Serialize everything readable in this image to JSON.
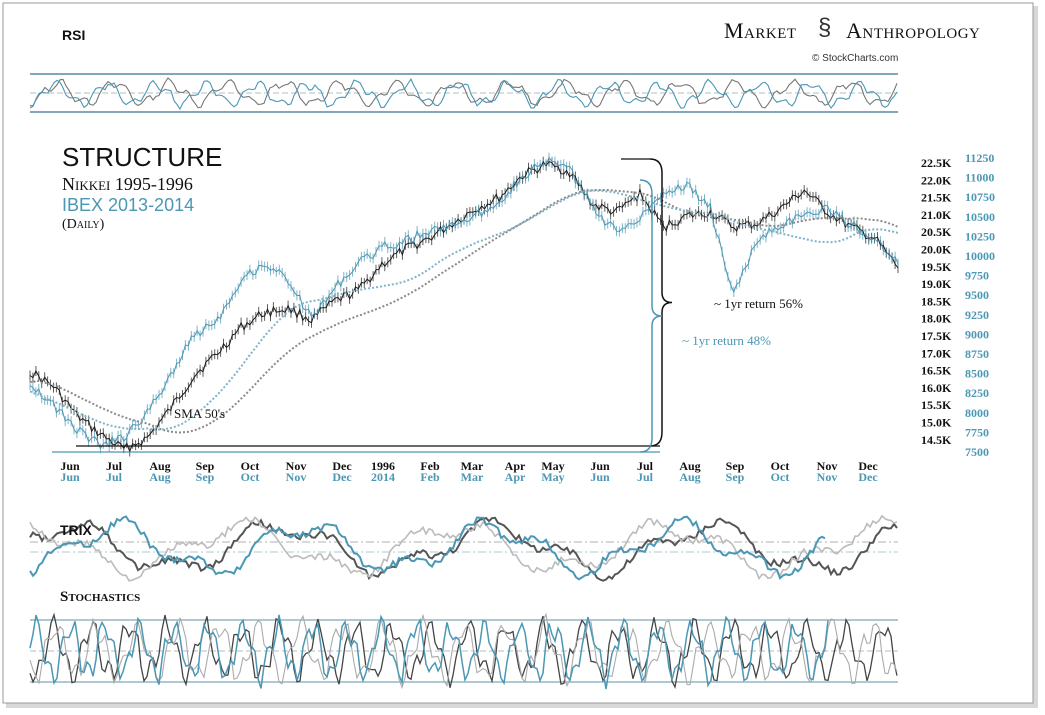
{
  "brand": {
    "name_part1": "Market",
    "name_part2": "Anthropology",
    "credit": "© StockCharts.com"
  },
  "panels": {
    "rsi_label": "RSI",
    "trix_label": "TRIX",
    "stochastics_label": "Stochastics"
  },
  "colors": {
    "nikkei": "#1a1a1a",
    "ibex": "#4b97b4",
    "accent": "#5fa3bd"
  },
  "chart_data": {
    "type": "line",
    "title": "STRUCTURE",
    "subtitle_1": "Nikkei 1995-1996",
    "subtitle_2": "IBEX  2013-2014",
    "subtitle_3": "(Daily)",
    "annotation_sma": "SMA 50's",
    "annotation_nikkei_return": "~ 1yr return 56%",
    "annotation_ibex_return": "~ 1yr return 48%",
    "x_labels_nikkei": [
      "Jun",
      "Jul",
      "Aug",
      "Sep",
      "Oct",
      "Nov",
      "Dec",
      "1996",
      "Feb",
      "Mar",
      "Apr",
      "May",
      "Jun",
      "Jul",
      "Aug",
      "Sep",
      "Oct",
      "Nov",
      "Dec"
    ],
    "x_labels_ibex": [
      "Jun",
      "Jul",
      "Aug",
      "Sep",
      "Oct",
      "Nov",
      "Dec",
      "2014",
      "Feb",
      "Mar",
      "Apr",
      "May",
      "Jun",
      "Jul",
      "Aug",
      "Sep",
      "Oct",
      "Nov",
      "Dec"
    ],
    "y_ticks_nikkei": [
      "22.5K",
      "22.0K",
      "21.5K",
      "21.0K",
      "20.5K",
      "20.0K",
      "19.5K",
      "19.0K",
      "18.5K",
      "18.0K",
      "17.5K",
      "17.0K",
      "16.5K",
      "16.0K",
      "15.5K",
      "15.0K",
      "14.5K"
    ],
    "y_ticks_ibex": [
      "11250",
      "11000",
      "10750",
      "10500",
      "10250",
      "10000",
      "9750",
      "9500",
      "9250",
      "9000",
      "8750",
      "8500",
      "8250",
      "8000",
      "7750",
      "7500"
    ],
    "nikkei_range": [
      14500,
      22500
    ],
    "ibex_range": [
      7500,
      11250
    ],
    "series": [
      {
        "name": "Nikkei 1995-1996",
        "values": [
          16700,
          16300,
          15500,
          15000,
          14600,
          14900,
          15700,
          16600,
          17200,
          17900,
          18300,
          18400,
          18100,
          18600,
          18900,
          19600,
          20000,
          20300,
          20700,
          21100,
          21400,
          22000,
          22300,
          22100,
          21200,
          21000,
          21500,
          20600,
          20900,
          21000,
          20600,
          20700,
          21100,
          21600,
          21000,
          20600,
          20300,
          19500
        ]
      },
      {
        "name": "IBEX 2013-2014",
        "values": [
          8400,
          8100,
          7800,
          7600,
          7700,
          8000,
          8500,
          9000,
          9200,
          9700,
          9900,
          9700,
          9200,
          9600,
          9900,
          10100,
          10200,
          10300,
          10400,
          10500,
          10700,
          11000,
          11200,
          11100,
          10600,
          10300,
          10500,
          10800,
          10900,
          10600,
          9500,
          10200,
          10400,
          10500,
          10600,
          10400,
          10200,
          9900
        ]
      }
    ]
  }
}
